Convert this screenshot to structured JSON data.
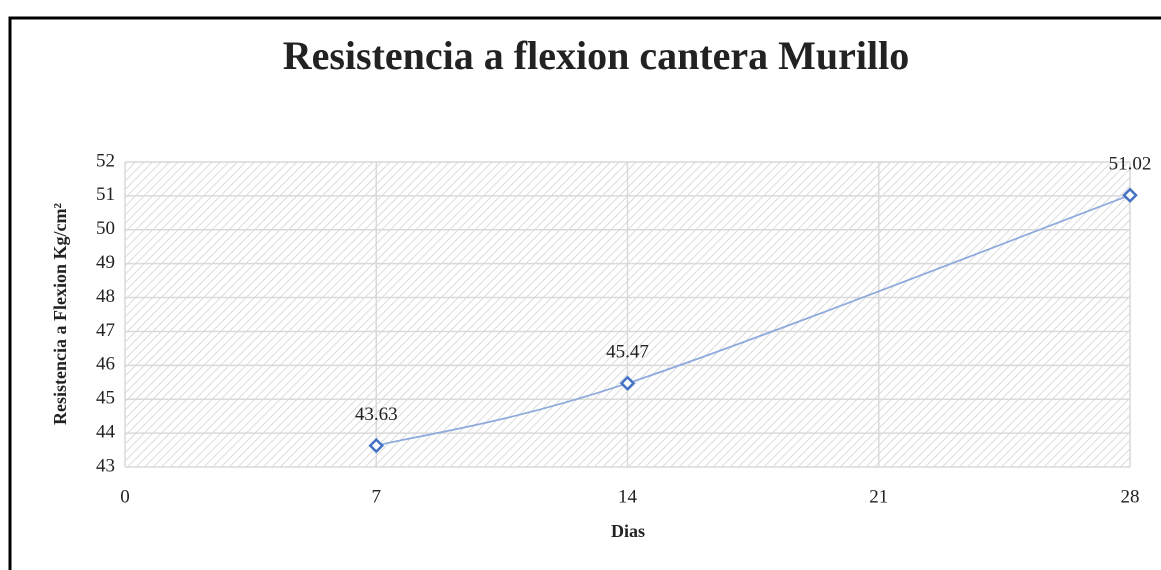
{
  "chart_data": {
    "type": "line",
    "title": "Resistencia a flexion  cantera Murillo",
    "x_label": "Dias",
    "y_label": "Resistencia a Flexion Kg/cm²",
    "x": [
      7,
      14,
      28
    ],
    "series": [
      {
        "color": "#4472c4",
        "line_color": "#8faadc",
        "values": [
          43.63,
          45.47,
          51.02
        ]
      }
    ],
    "xlim": [
      0,
      28
    ],
    "xticks": [
      0,
      7,
      14,
      21,
      28
    ],
    "ylim": [
      43,
      52
    ],
    "yticks": [
      43,
      44,
      45,
      46,
      47,
      48,
      49,
      50,
      51,
      52
    ],
    "grid": true,
    "smooth": true
  }
}
